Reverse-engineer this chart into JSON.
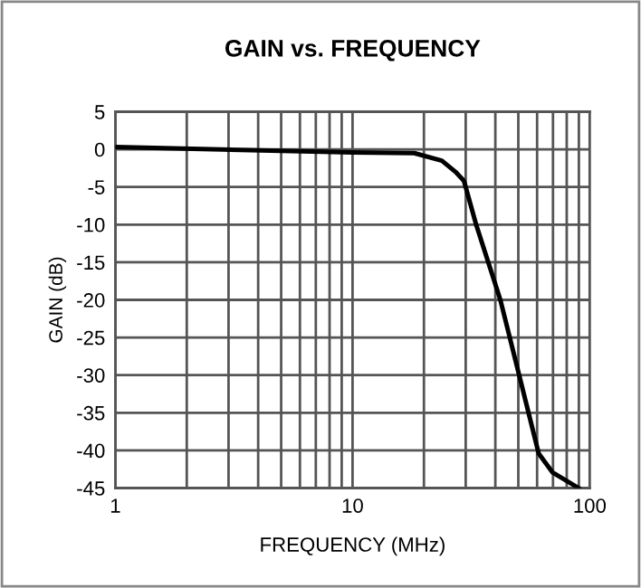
{
  "chart_data": {
    "type": "line",
    "title": "GAIN vs. FREQUENCY",
    "xlabel": "FREQUENCY (MHz)",
    "ylabel": "GAIN (dB)",
    "log": "x",
    "x": [
      1,
      10,
      18.2,
      23.8,
      27.2,
      29.5,
      33.2,
      42,
      50.4,
      60.9,
      69.6,
      89.8
    ],
    "series": [
      {
        "color": "#000000",
        "values": [
          0.3,
          -0.4,
          -0.5,
          -1.5,
          -3,
          -4.2,
          -10,
          -20,
          -30,
          -40.4,
          -42.9,
          -45
        ]
      }
    ],
    "xlim": [
      1,
      100
    ],
    "ylim": [
      -45,
      5
    ],
    "xticks": [
      1,
      {
        "value": 2,
        "label": null
      },
      {
        "value": 3,
        "label": null
      },
      {
        "value": 4,
        "label": null
      },
      {
        "value": 5,
        "label": null
      },
      {
        "value": 6,
        "label": null
      },
      {
        "value": 7,
        "label": null
      },
      {
        "value": 8,
        "label": null
      },
      {
        "value": 9,
        "label": null
      },
      10,
      {
        "value": 20,
        "label": null
      },
      {
        "value": 30,
        "label": null
      },
      {
        "value": 40,
        "label": null
      },
      {
        "value": 50,
        "label": null
      },
      {
        "value": 60,
        "label": null
      },
      {
        "value": 70,
        "label": null
      },
      {
        "value": 80,
        "label": null
      },
      {
        "value": 90,
        "label": null
      },
      100
    ],
    "yticks": [
      {
        "value": 5,
        "label": "5"
      },
      {
        "value": 0,
        "label": "0"
      },
      {
        "value": -5,
        "label": "-5"
      },
      {
        "value": -10,
        "label": "-10"
      },
      {
        "value": -15,
        "label": "-15"
      },
      {
        "value": -20,
        "label": "-20"
      },
      {
        "value": -25,
        "label": "-25"
      },
      {
        "value": -30,
        "label": "-30"
      },
      {
        "value": -35,
        "label": "-35"
      },
      {
        "value": -40,
        "label": "-40"
      },
      {
        "value": -45,
        "label": "-45"
      }
    ],
    "grid": true,
    "marker": "none",
    "line_style": "solid"
  }
}
